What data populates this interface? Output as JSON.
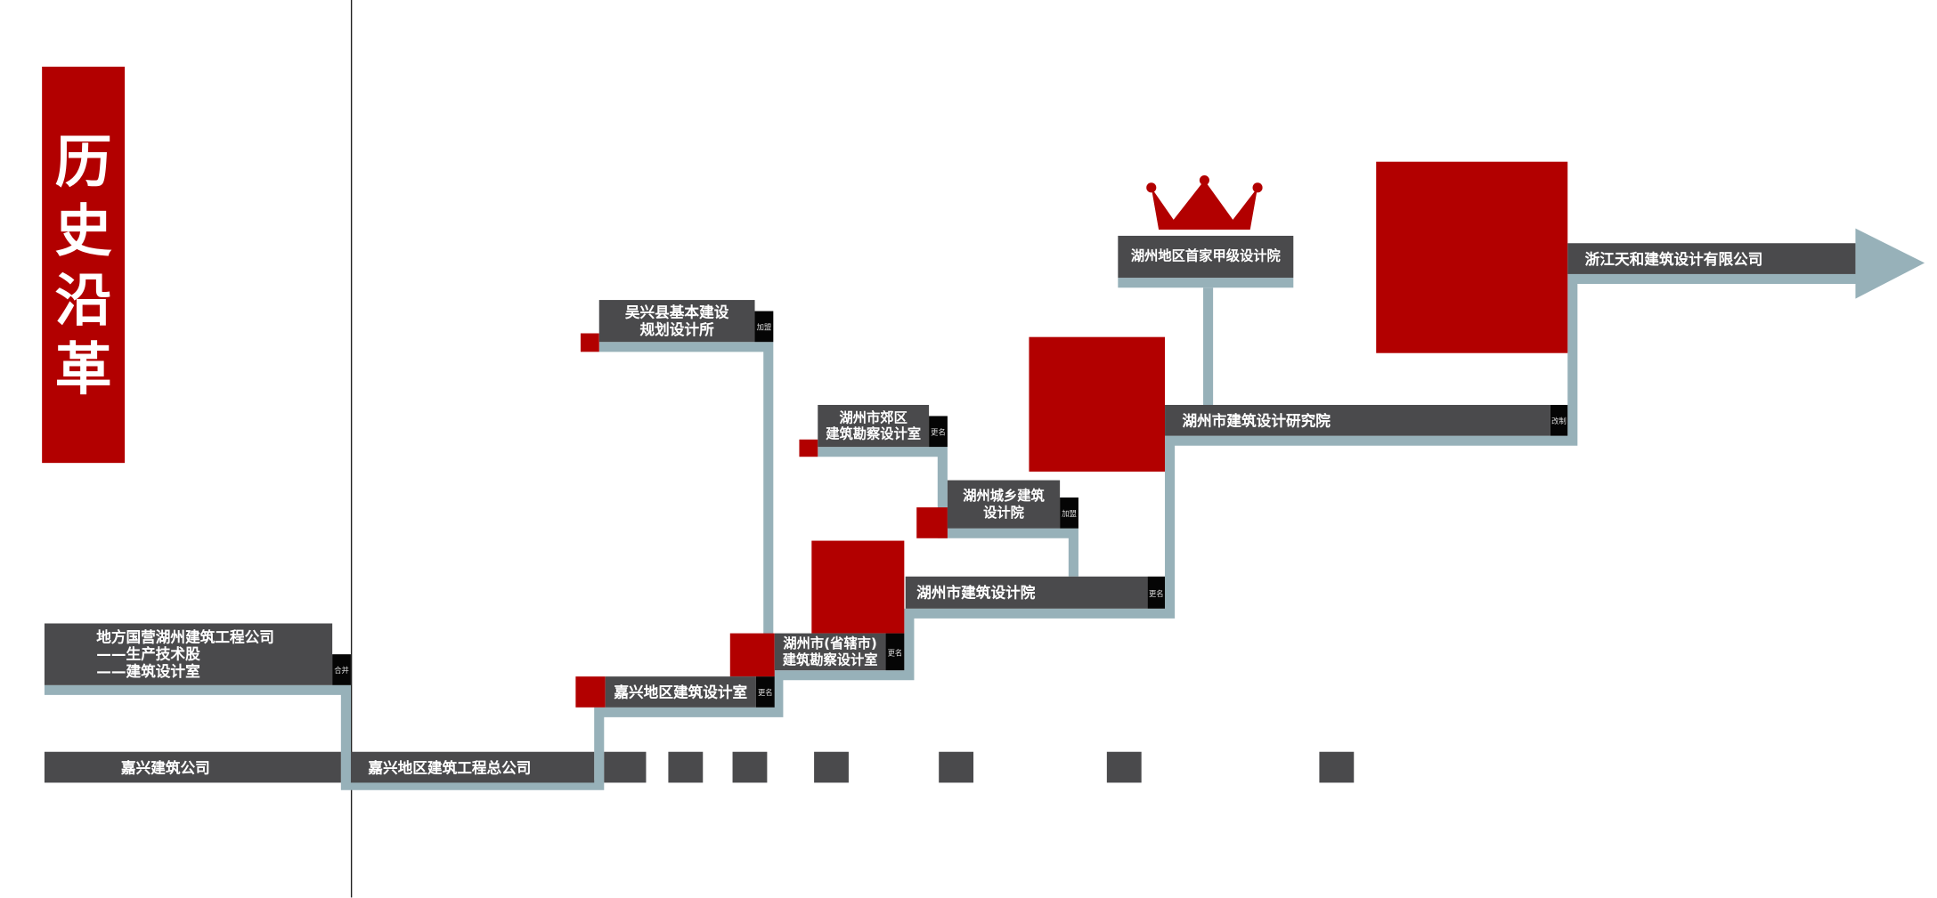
{
  "title": {
    "chars": [
      "历",
      "史",
      "沿",
      "革"
    ]
  },
  "colors": {
    "accent_red": "#b20000",
    "box_gray": "#4a4a4c",
    "path_blue": "#97b1b9",
    "tag_black": "#050505"
  },
  "nodes": {
    "difang": {
      "lines": [
        "地方国营湖州建筑工程公司",
        "——生产技术股",
        "——建筑设计室"
      ],
      "tag": "合并"
    },
    "jiaxing_company": {
      "label": "嘉兴建筑公司"
    },
    "jiaxing_general": {
      "label": "嘉兴地区建筑工程总公司"
    },
    "jiaxing_design_room": {
      "label": "嘉兴地区建筑设计室",
      "tag": "更名"
    },
    "wuxing": {
      "lines": [
        "吴兴县基本建设",
        "规划设计所"
      ],
      "tag": "加盟"
    },
    "huzhou_provincial": {
      "lines": [
        "湖州市(省辖市)",
        "建筑勘察设计室"
      ],
      "tag": "更名"
    },
    "huzhou_suburb": {
      "lines": [
        "湖州市郊区",
        "建筑勘察设计室"
      ],
      "tag": "更名"
    },
    "huzhou_urban_rural": {
      "lines": [
        "湖州城乡建筑",
        "设计院"
      ],
      "tag": "加盟"
    },
    "huzhou_design_institute": {
      "label": "湖州市建筑设计院",
      "tag": "更名"
    },
    "huzhou_research_institute": {
      "label": "湖州市建筑设计研究院",
      "tag": "改制"
    },
    "first_class": {
      "label": "湖州地区首家甲级设计院"
    },
    "tianhe": {
      "label": "浙江天和建筑设计有限公司"
    }
  },
  "icons": {
    "crown": "crown-icon",
    "arrow": "arrow-right-icon"
  }
}
